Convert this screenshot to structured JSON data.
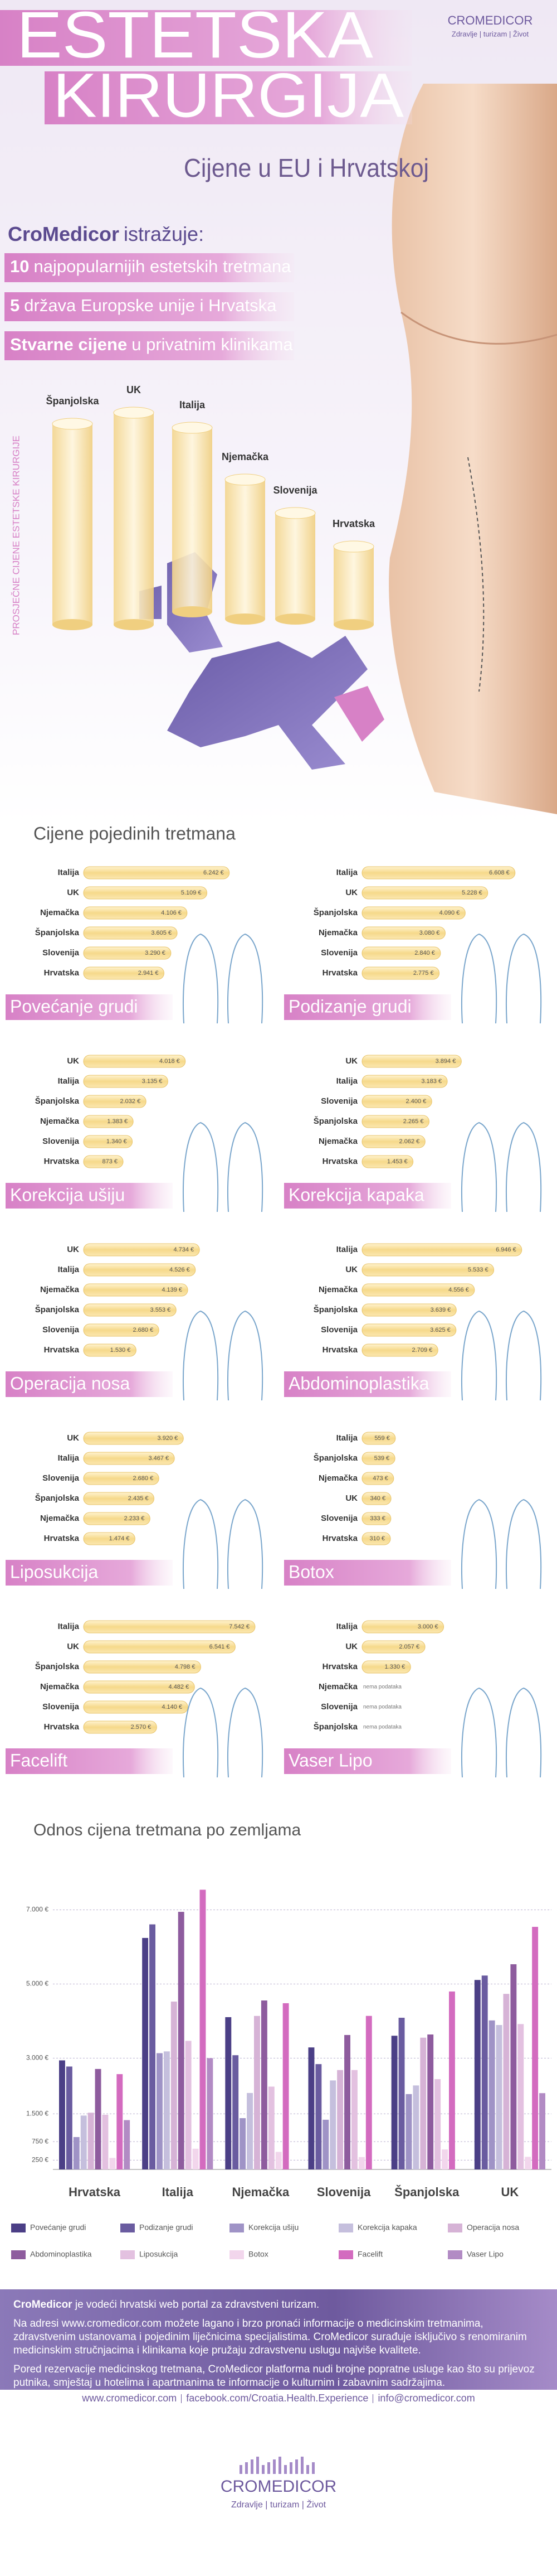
{
  "header": {
    "title_line1": "ESTETSKA",
    "title_line2": "KIRURGIJA",
    "subtitle": "Cijene u EU i Hrvatskoj",
    "logo": "CROMEDICOR",
    "tagline": "Zdravlje | turizam | Život"
  },
  "intro": {
    "brand": "CroMedicor",
    "lead": "istražuje:",
    "items": [
      {
        "strong": "10",
        "text": "najpopularnijih estetskih tretmana"
      },
      {
        "strong": "5",
        "text": "država Europske unije i Hrvatska"
      },
      {
        "strong": "Stvarne cijene",
        "text": "u privatnim klinikama"
      }
    ]
  },
  "hero": {
    "axis_label": "PROSJEČNE CIJENE ESTETSKE KIRURGIJE",
    "countries": [
      "Španjolska",
      "UK",
      "Italija",
      "Njemačka",
      "Slovenija",
      "Hrvatska"
    ]
  },
  "section_title": "Cijene pojedinih tretmana",
  "chart_data": [
    {
      "type": "bar",
      "title": "Povećanje grudi",
      "color": "#4b3f86",
      "categories": [
        "Italija",
        "UK",
        "Njemačka",
        "Španjolska",
        "Slovenija",
        "Hrvatska"
      ],
      "values": [
        6242,
        5109,
        4106,
        3605,
        3290,
        2941
      ],
      "value_labels": [
        "6.242 €",
        "5.109 €",
        "4.106 €",
        "3.605 €",
        "3.290 €",
        "2.941 €"
      ]
    },
    {
      "type": "bar",
      "title": "Podizanje grudi",
      "color": "#6a5ca0",
      "categories": [
        "Italija",
        "UK",
        "Španjolska",
        "Njemačka",
        "Slovenija",
        "Hrvatska"
      ],
      "values": [
        6608,
        5228,
        4090,
        3080,
        2840,
        2775
      ],
      "value_labels": [
        "6.608 €",
        "5.228 €",
        "4.090 €",
        "3.080 €",
        "2.840 €",
        "2.775 €"
      ]
    },
    {
      "type": "bar",
      "title": "Korekcija ušiju",
      "color": "#9f93c6",
      "categories": [
        "UK",
        "Italija",
        "Španjolska",
        "Njemačka",
        "Slovenija",
        "Hrvatska"
      ],
      "values": [
        4018,
        3135,
        2032,
        1383,
        1340,
        873
      ],
      "value_labels": [
        "4.018 €",
        "3.135 €",
        "2.032 €",
        "1.383 €",
        "1.340 €",
        "873 €"
      ]
    },
    {
      "type": "bar",
      "title": "Korekcija kapaka",
      "color": "#c5bfdd",
      "categories": [
        "UK",
        "Italija",
        "Slovenija",
        "Španjolska",
        "Njemačka",
        "Hrvatska"
      ],
      "values": [
        3894,
        3183,
        2400,
        2265,
        2062,
        1453
      ],
      "value_labels": [
        "3.894 €",
        "3.183 €",
        "2.400 €",
        "2.265 €",
        "2.062 €",
        "1.453 €"
      ]
    },
    {
      "type": "bar",
      "title": "Operacija nosa",
      "color": "#d6b3d6",
      "categories": [
        "UK",
        "Italija",
        "Njemačka",
        "Španjolska",
        "Slovenija",
        "Hrvatska"
      ],
      "values": [
        4734,
        4526,
        4139,
        3553,
        2680,
        1530
      ],
      "value_labels": [
        "4.734 €",
        "4.526 €",
        "4.139 €",
        "3.553 €",
        "2.680 €",
        "1.530 €"
      ]
    },
    {
      "type": "bar",
      "title": "Abdominoplastika",
      "color": "#8e5c9e",
      "categories": [
        "Italija",
        "UK",
        "Njemačka",
        "Španjolska",
        "Slovenija",
        "Hrvatska"
      ],
      "values": [
        6946,
        5533,
        4556,
        3639,
        3625,
        2709
      ],
      "value_labels": [
        "6.946 €",
        "5.533 €",
        "4.556 €",
        "3.639 €",
        "3.625 €",
        "2.709 €"
      ]
    },
    {
      "type": "bar",
      "title": "Liposukcija",
      "color": "#e3c1e0",
      "categories": [
        "UK",
        "Italija",
        "Slovenija",
        "Španjolska",
        "Njemačka",
        "Hrvatska"
      ],
      "values": [
        3920,
        3467,
        2680,
        2435,
        2233,
        1474
      ],
      "value_labels": [
        "3.920 €",
        "3.467 €",
        "2.680 €",
        "2.435 €",
        "2.233 €",
        "1.474 €"
      ]
    },
    {
      "type": "bar",
      "title": "Botox",
      "color": "#f2d6ec",
      "categories": [
        "Italija",
        "Španjolska",
        "Njemačka",
        "UK",
        "Slovenija",
        "Hrvatska"
      ],
      "values": [
        559,
        539,
        473,
        340,
        333,
        310
      ],
      "value_labels": [
        "559 €",
        "539 €",
        "473 €",
        "340 €",
        "333 €",
        "310 €"
      ]
    },
    {
      "type": "bar",
      "title": "Facelift",
      "color": "#d36bbf",
      "categories": [
        "Italija",
        "UK",
        "Španjolska",
        "Njemačka",
        "Slovenija",
        "Hrvatska"
      ],
      "values": [
        7542,
        6541,
        4798,
        4482,
        4140,
        2570
      ],
      "value_labels": [
        "7.542 €",
        "6.541 €",
        "4.798 €",
        "4.482 €",
        "4.140 €",
        "2.570 €"
      ]
    },
    {
      "type": "bar",
      "title": "Vaser Lipo",
      "color": "#b28bc4",
      "categories": [
        "Italija",
        "UK",
        "Hrvatska",
        "Njemačka",
        "Slovenija",
        "Španjolska"
      ],
      "values": [
        3000,
        2057,
        1330,
        null,
        null,
        null
      ],
      "value_labels": [
        "3.000 €",
        "2.057 €",
        "1.330 €",
        "nema podataka",
        "nema podataka",
        "nema podataka"
      ]
    },
    {
      "type": "grouped_bar",
      "title": "Odnos cijena tretmana po zemljama",
      "categories": [
        "Hrvatska",
        "Italija",
        "Njemačka",
        "Slovenija",
        "Španjolska",
        "UK"
      ],
      "ylim": [
        0,
        8000
      ],
      "yticks": [
        {
          "value": 250,
          "label": "250 €"
        },
        {
          "value": 750,
          "label": "750 €"
        },
        {
          "value": 1500,
          "label": "1.500 €"
        },
        {
          "value": 3000,
          "label": "3.000 €"
        },
        {
          "value": 5000,
          "label": "5.000 €"
        },
        {
          "value": 7000,
          "label": "7.000 €"
        }
      ],
      "grid": true
    }
  ],
  "footer": {
    "brand": "CroMedicor",
    "lead": "je vodeći hrvatski web portal za zdravstveni turizam.",
    "paragraphs": [
      "Na adresi www.cromedicor.com možete lagano i brzo pronaći informacije o medicinskim tretmanima, zdravstvenim ustanovama i pojedinim liječnicima specijalistima. CroMedicor surađuje isključivo s renomiranim medicinskim stručnjacima i klinikama koje pružaju zdravstvenu uslugu najviše kvalitete.",
      "Pored rezervacije medicinskog tretmana, CroMedicor platforma nudi brojne popratne usluge kao što su prijevoz putnika, smještaj u hotelima i apartmanima te informacije o kulturnim i zabavnim sadržajima."
    ],
    "links": [
      "www.cromedicor.com",
      "facebook.com/Croatia.Health.Experience",
      "info@cromedicor.com"
    ],
    "logo": "CROMEDICOR",
    "tagline": "Zdravlje | turizam | Život"
  }
}
